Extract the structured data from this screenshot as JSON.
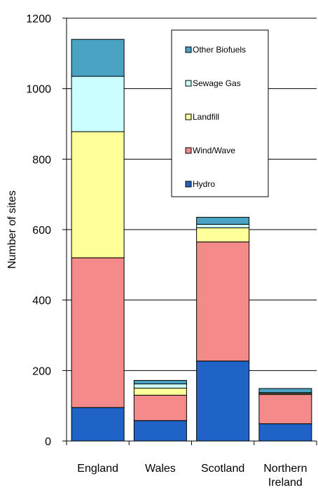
{
  "chart_data": {
    "type": "bar",
    "stacked": true,
    "ylabel": "Number of sites",
    "ylim": [
      0,
      1200
    ],
    "yticks": [
      0,
      200,
      400,
      600,
      800,
      1000,
      1200
    ],
    "grid": true,
    "legend_position": "top-right",
    "categories": [
      [
        "England"
      ],
      [
        "Wales"
      ],
      [
        "Scotland"
      ],
      [
        "Northern",
        "Ireland"
      ]
    ],
    "series": [
      {
        "name": "Hydro",
        "color": "#1f63c6",
        "values": [
          95,
          58,
          227,
          49
        ]
      },
      {
        "name": "Wind/Wave",
        "color": "#f58a8a",
        "values": [
          425,
          72,
          338,
          83
        ]
      },
      {
        "name": "Landfill",
        "color": "#ffff99",
        "values": [
          358,
          20,
          40,
          3
        ]
      },
      {
        "name": "Sewage Gas",
        "color": "#ccffff",
        "values": [
          157,
          12,
          10,
          2
        ]
      },
      {
        "name": "Other Biofuels",
        "color": "#4ba3c3",
        "values": [
          105,
          10,
          20,
          12
        ]
      }
    ],
    "legend_order": [
      "Other Biofuels",
      "Sewage Gas",
      "Landfill",
      "Wind/Wave",
      "Hydro"
    ]
  }
}
